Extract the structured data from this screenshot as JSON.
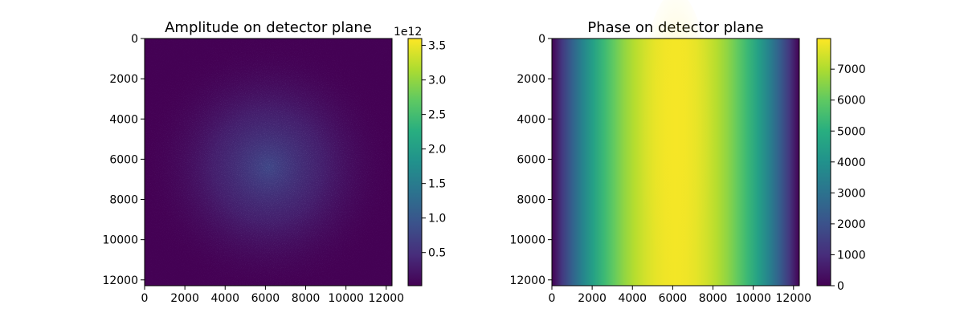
{
  "chart_data": [
    {
      "type": "heatmap",
      "title": "Amplitude on detector plane",
      "xlabel": "",
      "ylabel": "",
      "x_range": [
        0,
        12288
      ],
      "y_range": [
        0,
        12288
      ],
      "y_inverted": true,
      "x_ticks": [
        "0",
        "2000",
        "4000",
        "6000",
        "8000",
        "10000",
        "12000"
      ],
      "y_ticks": [
        "0",
        "2000",
        "4000",
        "6000",
        "8000",
        "10000",
        "12000"
      ],
      "colormap": "viridis",
      "pattern": "radial-speckle",
      "center": [
        6144,
        6144
      ],
      "colorbar": {
        "range": [
          0.02,
          3.6
        ],
        "ticks": [
          "0.5",
          "1.0",
          "1.5",
          "2.0",
          "2.5",
          "3.0",
          "3.5"
        ],
        "offset_label": "1e12"
      },
      "grid": false
    },
    {
      "type": "heatmap",
      "title": "Phase on detector plane",
      "xlabel": "",
      "ylabel": "",
      "x_range": [
        0,
        12288
      ],
      "y_range": [
        0,
        12288
      ],
      "y_inverted": true,
      "x_ticks": [
        "0",
        "2000",
        "4000",
        "6000",
        "8000",
        "10000",
        "12000"
      ],
      "y_ticks": [
        "0",
        "2000",
        "4000",
        "6000",
        "8000",
        "10000",
        "12000"
      ],
      "colormap": "viridis",
      "pattern": "horizontal-parabolic-with-center-bulge",
      "center": [
        6144,
        6144
      ],
      "colorbar": {
        "range": [
          0,
          7990
        ],
        "ticks": [
          "0",
          "1000",
          "2000",
          "3000",
          "4000",
          "5000",
          "6000",
          "7000"
        ],
        "offset_label": ""
      },
      "grid": false
    }
  ]
}
